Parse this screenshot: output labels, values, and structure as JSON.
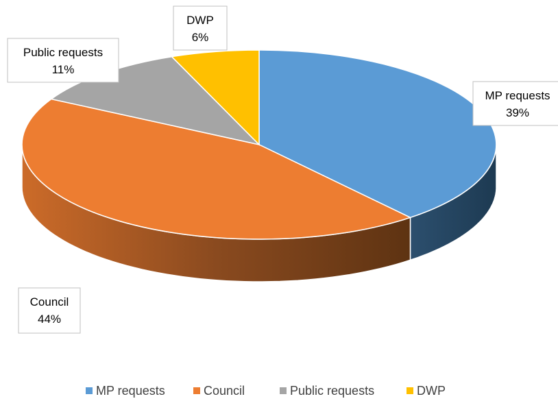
{
  "chart_data": {
    "type": "pie",
    "style": "3d",
    "title": "",
    "categories": [
      "MP requests",
      "Council",
      "Public requests",
      "DWP"
    ],
    "values": [
      39,
      44,
      11,
      6
    ],
    "value_labels": [
      "39%",
      "44%",
      "11%",
      "6%"
    ],
    "colors": [
      "#5B9BD5",
      "#ED7D31",
      "#A5A5A5",
      "#FFC000"
    ],
    "legend": {
      "position": "bottom"
    },
    "data_labels": "category-and-percent"
  }
}
